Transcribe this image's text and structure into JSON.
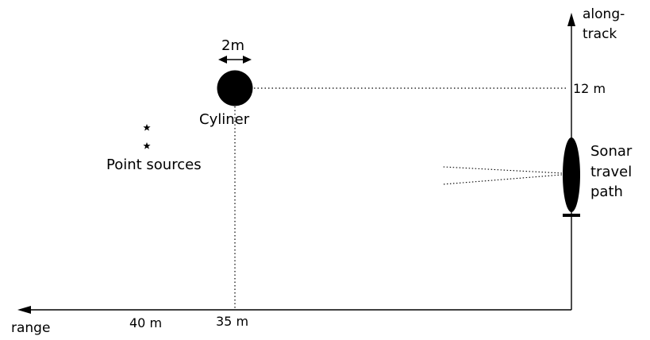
{
  "labels": {
    "along_track_line1": "along-",
    "along_track_line2": "track",
    "range": "range",
    "tick_12m": "12 m",
    "tick_40m": "40 m",
    "tick_35m": "35 m",
    "cylinder_width": "2m",
    "cylinder": "Cyliner",
    "point_sources": "Point sources",
    "sonar_line1": "Sonar",
    "sonar_line2": "travel",
    "sonar_line3": "path"
  },
  "colors": {
    "ink": "#000000",
    "background": "#ffffff"
  }
}
